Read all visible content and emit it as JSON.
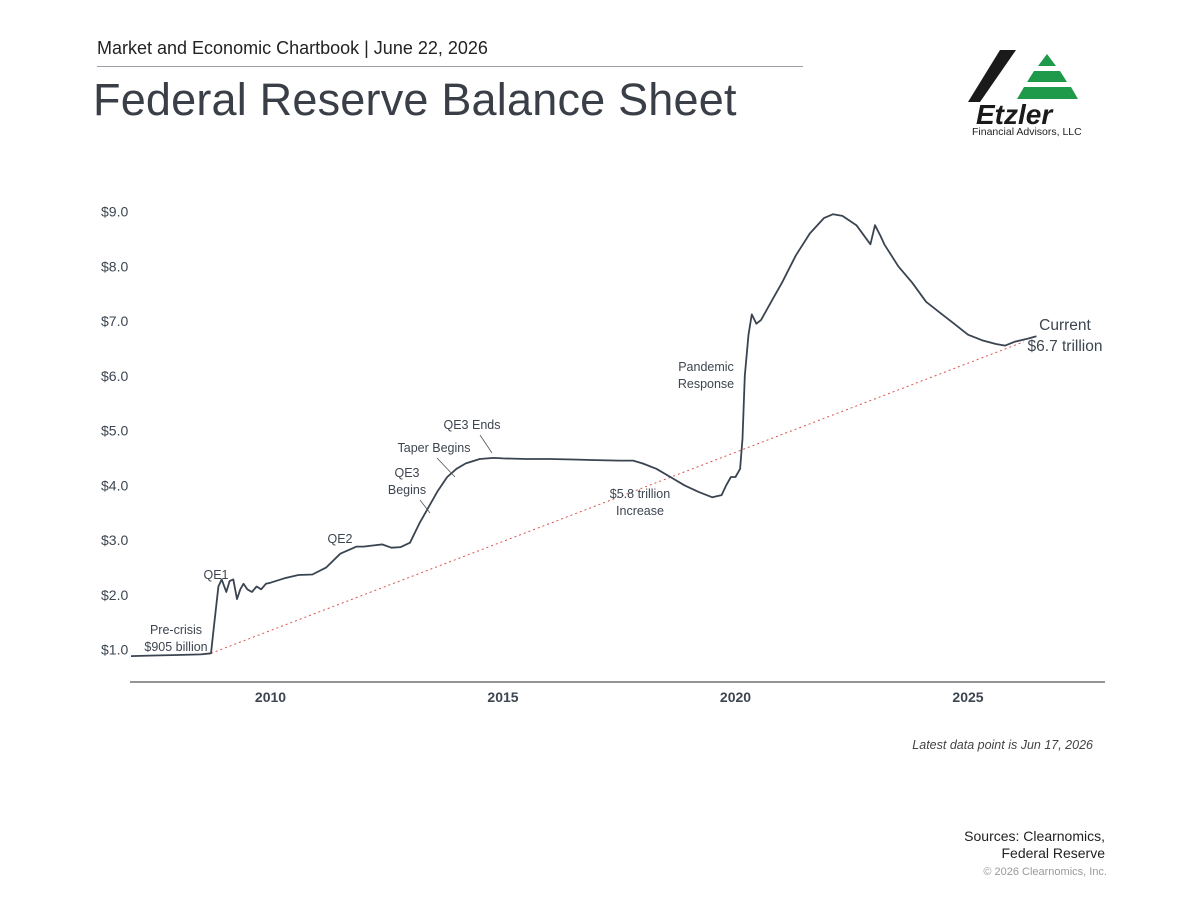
{
  "header": {
    "subtitle": "Market and Economic Chartbook | June 22, 2026",
    "title": "Federal Reserve Balance Sheet"
  },
  "logo": {
    "wordmark": "Etzler",
    "caption": "Financial Advisors, LLC",
    "colors": {
      "dark": "#1a1a1a",
      "green": "#1e9a4a"
    }
  },
  "chart_data": {
    "type": "line",
    "title": "",
    "xlabel": "",
    "ylabel": "",
    "ylim": [
      0.8,
      9.4
    ],
    "xlim": [
      2007.0,
      2028.0
    ],
    "y_ticks": [
      {
        "value": 1,
        "label": "$1.0"
      },
      {
        "value": 2,
        "label": "$2.0"
      },
      {
        "value": 3,
        "label": "$3.0"
      },
      {
        "value": 4,
        "label": "$4.0"
      },
      {
        "value": 5,
        "label": "$5.0"
      },
      {
        "value": 6,
        "label": "$6.0"
      },
      {
        "value": 7,
        "label": "$7.0"
      },
      {
        "value": 8,
        "label": "$8.0"
      },
      {
        "value": 9,
        "label": "$9.0"
      }
    ],
    "x_ticks": [
      {
        "value": 2010,
        "label": "2010"
      },
      {
        "value": 2015,
        "label": "2015"
      },
      {
        "value": 2020,
        "label": "2020"
      },
      {
        "value": 2025,
        "label": "2025"
      }
    ],
    "grid": false,
    "legend": "none",
    "line_color": "#3a4450",
    "trend_color": "#d9534f",
    "series": [
      {
        "name": "",
        "x": [
          2007.0,
          2007.5,
          2008.0,
          2008.5,
          2008.72,
          2008.78,
          2008.88,
          2008.95,
          2009.05,
          2009.12,
          2009.2,
          2009.28,
          2009.35,
          2009.42,
          2009.5,
          2009.6,
          2009.7,
          2009.8,
          2009.9,
          2010.0,
          2010.3,
          2010.6,
          2010.9,
          2011.2,
          2011.5,
          2011.85,
          2012.0,
          2012.2,
          2012.4,
          2012.6,
          2012.8,
          2013.0,
          2013.2,
          2013.4,
          2013.6,
          2013.8,
          2014.0,
          2014.2,
          2014.5,
          2014.8,
          2015.0,
          2015.5,
          2016.0,
          2016.5,
          2017.0,
          2017.5,
          2017.8,
          2018.0,
          2018.3,
          2018.6,
          2018.9,
          2019.2,
          2019.5,
          2019.7,
          2019.8,
          2019.9,
          2020.0,
          2020.1,
          2020.15,
          2020.2,
          2020.28,
          2020.35,
          2020.45,
          2020.55,
          2020.8,
          2021.0,
          2021.3,
          2021.6,
          2021.9,
          2022.1,
          2022.3,
          2022.6,
          2022.9,
          2023.0,
          2023.12,
          2023.2,
          2023.5,
          2023.8,
          2024.1,
          2024.4,
          2024.7,
          2025.0,
          2025.3,
          2025.6,
          2025.8,
          2026.0,
          2026.3,
          2026.47
        ],
        "values": [
          0.88,
          0.89,
          0.9,
          0.91,
          0.93,
          1.4,
          2.15,
          2.28,
          2.05,
          2.25,
          2.28,
          1.92,
          2.1,
          2.2,
          2.1,
          2.05,
          2.15,
          2.1,
          2.2,
          2.22,
          2.3,
          2.36,
          2.37,
          2.5,
          2.75,
          2.88,
          2.88,
          2.9,
          2.92,
          2.86,
          2.87,
          2.95,
          3.3,
          3.6,
          3.9,
          4.15,
          4.3,
          4.4,
          4.48,
          4.5,
          4.49,
          4.48,
          4.48,
          4.47,
          4.46,
          4.45,
          4.45,
          4.4,
          4.3,
          4.15,
          4.0,
          3.88,
          3.78,
          3.82,
          4.0,
          4.15,
          4.15,
          4.3,
          4.85,
          6.0,
          6.75,
          7.12,
          6.95,
          7.02,
          7.4,
          7.7,
          8.2,
          8.6,
          8.88,
          8.95,
          8.92,
          8.75,
          8.4,
          8.75,
          8.55,
          8.4,
          8.0,
          7.7,
          7.35,
          7.15,
          6.95,
          6.75,
          6.65,
          6.58,
          6.55,
          6.62,
          6.68,
          6.72
        ]
      }
    ],
    "trend_line": {
      "x": [
        2008.72,
        2026.2
      ],
      "values": [
        0.93,
        6.62
      ]
    },
    "annotations": [
      {
        "id": "precrisis",
        "lines": [
          "Pre-crisis",
          "$905 billion"
        ]
      },
      {
        "id": "qe1",
        "lines": [
          "QE1"
        ]
      },
      {
        "id": "qe2",
        "lines": [
          "QE2"
        ]
      },
      {
        "id": "qe3begins",
        "lines": [
          "QE3",
          "Begins"
        ]
      },
      {
        "id": "taper",
        "lines": [
          "Taper Begins"
        ]
      },
      {
        "id": "qe3ends",
        "lines": [
          "QE3 Ends"
        ]
      },
      {
        "id": "increase",
        "lines": [
          "$5.8 trillion",
          "Increase"
        ]
      },
      {
        "id": "pandemic",
        "lines": [
          "Pandemic",
          "Response"
        ]
      },
      {
        "id": "current",
        "lines": [
          "Current",
          "$6.7 trillion"
        ]
      }
    ]
  },
  "footer": {
    "latest_note": "Latest data point is Jun 17, 2026",
    "sources_line1": "Sources: Clearnomics,",
    "sources_line2": "Federal Reserve",
    "copyright": "© 2026 Clearnomics, Inc."
  }
}
